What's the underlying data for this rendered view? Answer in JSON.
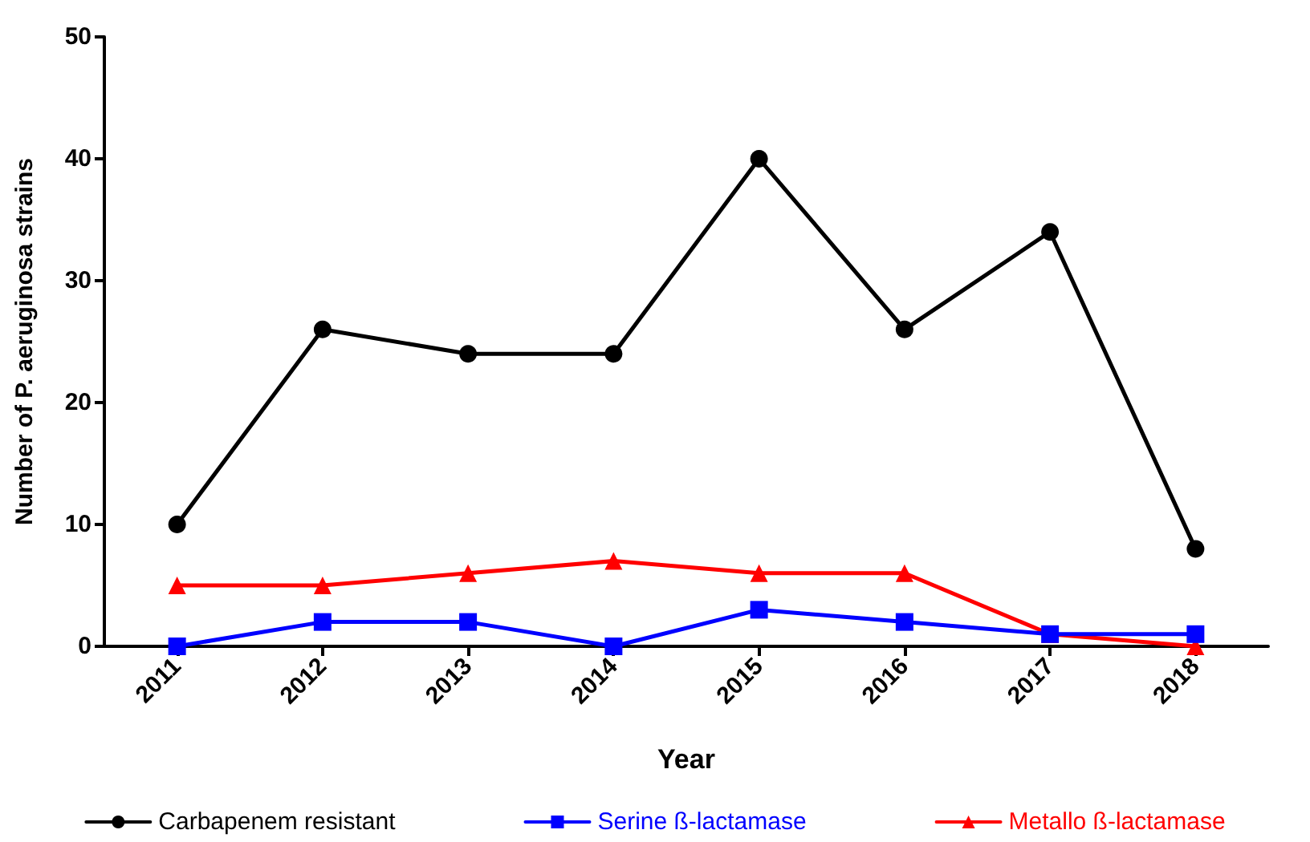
{
  "chart_data": {
    "type": "line",
    "xlabel": "Year",
    "ylabel": "Number of P. aeruginosa strains",
    "categories": [
      "2011",
      "2012",
      "2013",
      "2014",
      "2015",
      "2016",
      "2017",
      "2018"
    ],
    "ylim": [
      0,
      50
    ],
    "yticks": [
      0,
      10,
      20,
      30,
      40,
      50
    ],
    "grid": false,
    "legend": "bottom",
    "line_style": "solid",
    "series": [
      {
        "name": "Carbapenem resistant",
        "color": "#000000",
        "marker": "circle",
        "values": [
          10,
          26,
          24,
          24,
          40,
          26,
          34,
          8
        ]
      },
      {
        "name": "Serine ß-lactamase",
        "color": "#0000ff",
        "marker": "square",
        "values": [
          0,
          2,
          2,
          0,
          3,
          2,
          1,
          1
        ]
      },
      {
        "name": "Metallo ß-lactamase",
        "color": "#ff0000",
        "marker": "triangle",
        "values": [
          5,
          5,
          6,
          7,
          6,
          6,
          1,
          0
        ]
      }
    ]
  }
}
